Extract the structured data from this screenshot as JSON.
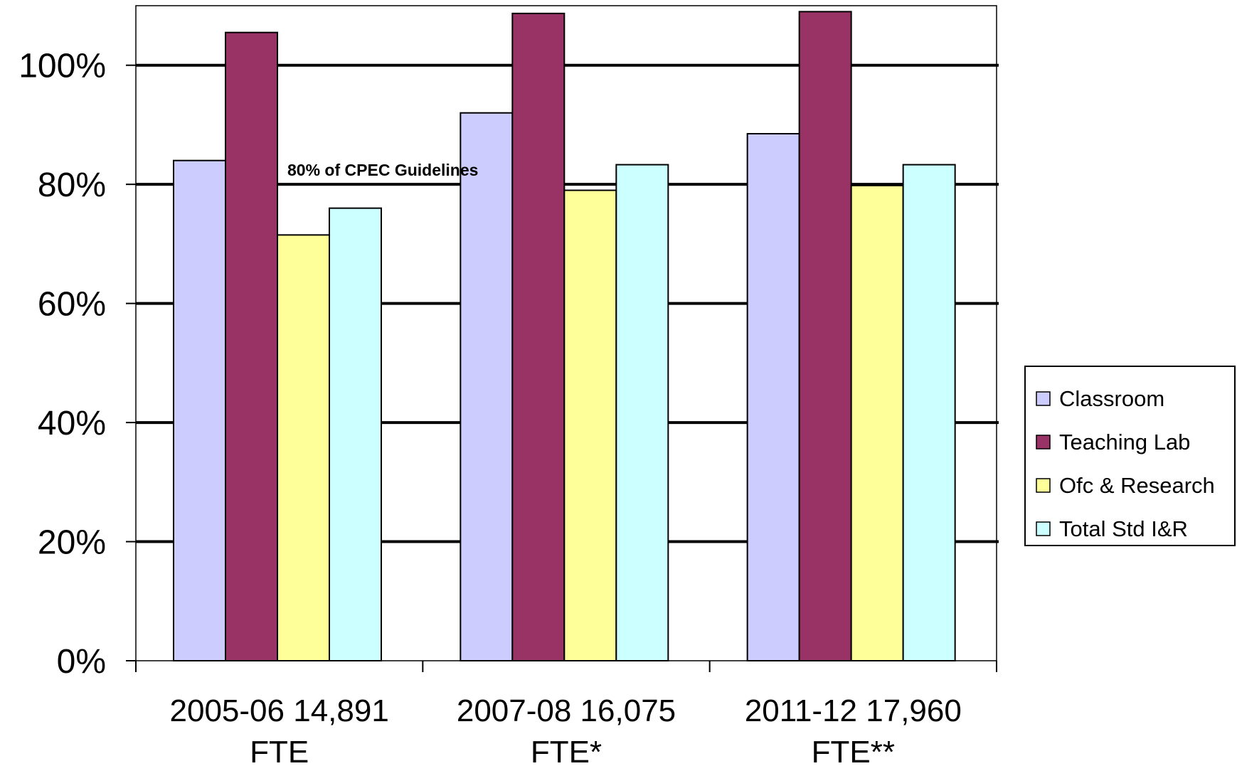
{
  "chart_data": {
    "type": "bar",
    "title": "",
    "xlabel": "",
    "ylabel": "",
    "categories": [
      [
        "2005-06 14,891",
        "FTE"
      ],
      [
        "2007-08 16,075",
        "FTE*"
      ],
      [
        "2011-12 17,960",
        "FTE**"
      ]
    ],
    "series": [
      {
        "name": "Classroom",
        "color": "#ccccff",
        "values": [
          84,
          92,
          88.5
        ]
      },
      {
        "name": "Teaching Lab",
        "color": "#993366",
        "values": [
          105.5,
          108.7,
          109
        ]
      },
      {
        "name": "Ofc & Research",
        "color": "#ffff99",
        "values": [
          71.5,
          79,
          79.8
        ]
      },
      {
        "name": "Total Std I&R",
        "color": "#ccffff",
        "values": [
          76,
          83.3,
          83.3
        ]
      }
    ],
    "ylim": [
      0,
      110
    ],
    "yticks": [
      0,
      20,
      40,
      60,
      80,
      100
    ],
    "ytick_labels": [
      "0%",
      "20%",
      "40%",
      "60%",
      "80%",
      "100%"
    ],
    "grid": true,
    "legend_position": "right",
    "annotations": [
      {
        "text": "80% of CPEC Guidelines",
        "x_category": 0,
        "y": 80
      }
    ]
  }
}
